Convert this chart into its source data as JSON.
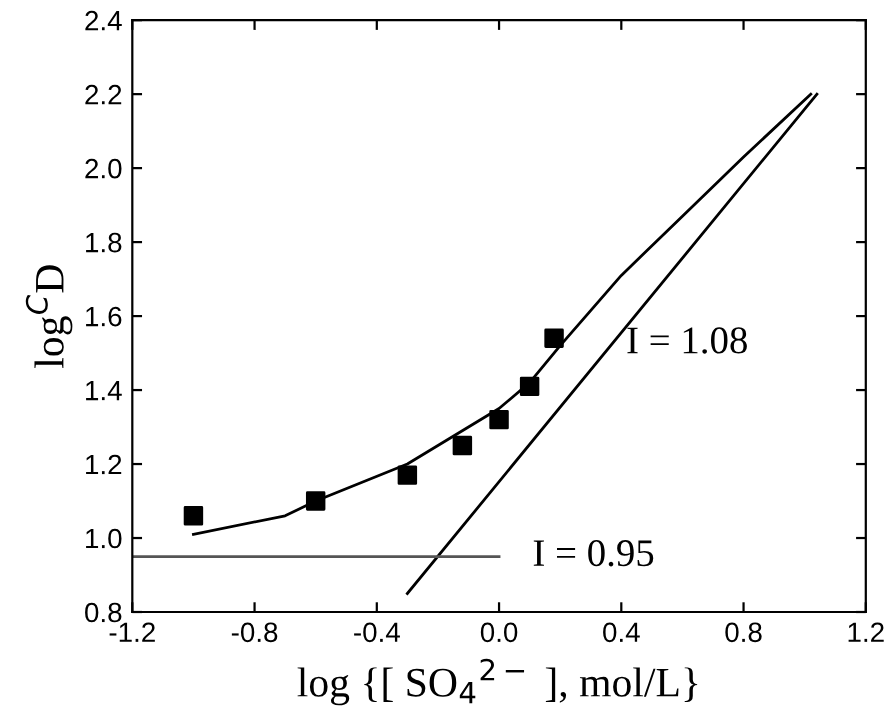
{
  "chart_data": {
    "type": "scatter",
    "xlabel": "log {[ SO$_{4}$$^{2−}$ ], mol/L}",
    "ylabel": "log$^{C}$D",
    "xlim": [
      -1.2,
      1.2
    ],
    "xticks": [
      {
        "value": -1.2,
        "label": "-1.2"
      },
      {
        "value": -0.8,
        "label": "-0.8"
      },
      {
        "value": -0.4,
        "label": "-0.4"
      },
      {
        "value": 0.0,
        "label": "0.0"
      },
      0.4,
      0.8,
      1.2
    ],
    "ylim": [
      0.8,
      2.4
    ],
    "yticks": [
      0.8,
      {
        "value": 1.0,
        "label": "1.0"
      },
      1.2,
      1.4,
      1.6,
      1.8,
      {
        "value": 2.0,
        "label": "2.0"
      },
      2.2,
      2.4
    ],
    "grid": false,
    "legend": false,
    "series": [
      {
        "marker": "square",
        "color": "#000000",
        "x": [
          -1.0,
          -0.6,
          -0.3,
          -0.12,
          0.0,
          0.1,
          0.18
        ],
        "values": [
          1.06,
          1.1,
          1.17,
          1.25,
          1.32,
          1.41,
          1.54
        ]
      },
      {
        "type": "line",
        "marker": "none",
        "color": "#000000",
        "x": [
          -1.0,
          -0.7,
          -0.6,
          -0.3,
          0.0,
          0.1,
          0.2,
          0.4,
          0.6,
          0.8,
          1.02
        ],
        "values": [
          1.01,
          1.06,
          1.1,
          1.2,
          1.35,
          1.42,
          1.52,
          1.71,
          1.87,
          2.03,
          2.2
        ]
      },
      {
        "type": "line",
        "name": "I = 1.08",
        "marker": "none",
        "color": "#000000",
        "x": [
          -0.3,
          1.04
        ],
        "values": [
          0.85,
          2.2
        ]
      },
      {
        "type": "line",
        "name": "I = 0.95",
        "marker": "none",
        "color": "#555555",
        "x": [
          -1.2,
          0.0
        ],
        "values": [
          0.95,
          0.95
        ]
      }
    ]
  }
}
